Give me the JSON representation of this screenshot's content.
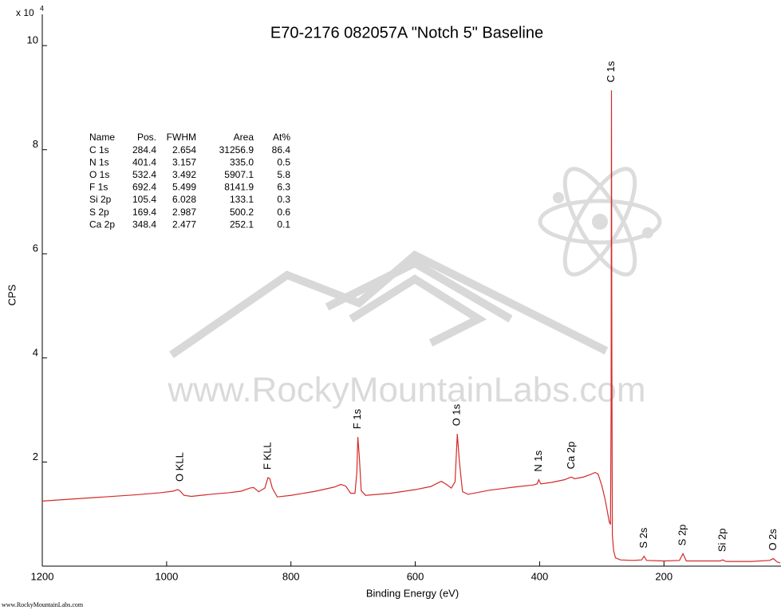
{
  "chart_data": {
    "type": "line",
    "title": "E70-2176 082057A \"Notch 5\" Baseline",
    "x_label": "Binding Energy (eV)",
    "y_label": "CPS",
    "y_offset_text": "x 10",
    "y_offset_exponent": "4",
    "xlim": [
      1200,
      13
    ],
    "ylim": [
      0,
      10.6
    ],
    "xticks": [
      1200,
      1000,
      800,
      600,
      400,
      200
    ],
    "yticks": [
      2,
      4,
      6,
      8,
      10
    ],
    "grid": false,
    "x": [
      1200,
      1150,
      1100,
      1050,
      1010,
      990,
      982,
      978,
      972,
      960,
      930,
      900,
      880,
      866,
      860,
      852,
      842,
      837,
      834,
      830,
      822,
      800,
      760,
      730,
      720,
      712,
      704,
      697,
      694,
      692.4,
      690,
      687,
      680,
      640,
      600,
      575,
      565,
      558,
      550,
      542,
      536,
      532.4,
      529,
      524,
      515,
      480,
      440,
      410,
      404,
      401.4,
      398,
      380,
      360,
      352,
      348.4,
      344,
      330,
      318,
      311,
      306,
      300,
      295,
      291,
      288,
      286,
      285,
      284.4,
      283.8,
      283,
      281,
      278,
      270,
      250,
      236,
      232,
      228,
      200,
      175,
      169.4,
      164,
      140,
      110,
      105.4,
      100,
      60,
      30,
      24,
      18,
      13
    ],
    "series": [
      {
        "color": "#d42a2a",
        "values": [
          1.25,
          1.29,
          1.33,
          1.37,
          1.41,
          1.44,
          1.47,
          1.44,
          1.36,
          1.34,
          1.38,
          1.41,
          1.44,
          1.5,
          1.51,
          1.43,
          1.5,
          1.7,
          1.68,
          1.5,
          1.33,
          1.36,
          1.44,
          1.52,
          1.57,
          1.54,
          1.4,
          1.4,
          1.8,
          2.48,
          2.1,
          1.45,
          1.36,
          1.4,
          1.47,
          1.53,
          1.59,
          1.63,
          1.57,
          1.5,
          1.62,
          2.54,
          2.0,
          1.43,
          1.38,
          1.46,
          1.52,
          1.56,
          1.58,
          1.66,
          1.58,
          1.61,
          1.66,
          1.7,
          1.71,
          1.68,
          1.71,
          1.76,
          1.8,
          1.77,
          1.55,
          1.3,
          1.05,
          0.85,
          0.8,
          3.0,
          9.14,
          4.0,
          0.6,
          0.3,
          0.16,
          0.12,
          0.11,
          0.12,
          0.19,
          0.11,
          0.1,
          0.11,
          0.24,
          0.1,
          0.1,
          0.1,
          0.12,
          0.09,
          0.09,
          0.11,
          0.145,
          0.08,
          0.06
        ]
      }
    ],
    "peak_labels": [
      {
        "text": "O KLL",
        "x": 978
      },
      {
        "text": "F KLL",
        "x": 837
      },
      {
        "text": "F 1s",
        "x": 692.4
      },
      {
        "text": "O 1s",
        "x": 532.4
      },
      {
        "text": "N 1s",
        "x": 401.4
      },
      {
        "text": "Ca 2p",
        "x": 348.4
      },
      {
        "text": "C 1s",
        "x": 284.4
      },
      {
        "text": "S 2s",
        "x": 232
      },
      {
        "text": "S 2p",
        "x": 169.4
      },
      {
        "text": "Si 2p",
        "x": 105.4
      },
      {
        "text": "O 2s",
        "x": 24
      }
    ],
    "annotation_table": {
      "columns": [
        "Name",
        "Pos.",
        "FWHM",
        "Area",
        "At%"
      ],
      "rows": [
        [
          "C 1s",
          "284.4",
          "2.654",
          "31256.9",
          "86.4"
        ],
        [
          "N 1s",
          "401.4",
          "3.157",
          "335.0",
          "0.5"
        ],
        [
          "O 1s",
          "532.4",
          "3.492",
          "5907.1",
          "5.8"
        ],
        [
          "F 1s",
          "692.4",
          "5.499",
          "8141.9",
          "6.3"
        ],
        [
          "Si 2p",
          "105.4",
          "6.028",
          "133.1",
          "0.3"
        ],
        [
          "S 2p",
          "169.4",
          "2.987",
          "500.2",
          "0.6"
        ],
        [
          "Ca 2p",
          "348.4",
          "2.477",
          "252.1",
          "0.1"
        ]
      ]
    },
    "watermark": "www.RockyMountainLabs.com",
    "footer": "www.RockyMountainLabs.com"
  }
}
